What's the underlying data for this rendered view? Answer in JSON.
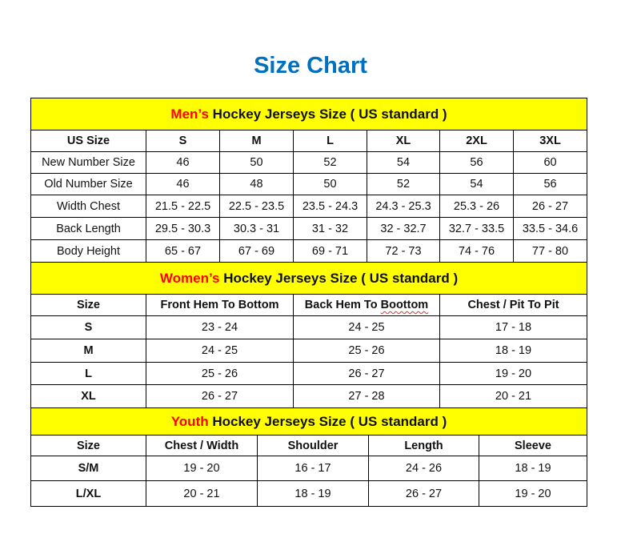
{
  "title": "Size Chart",
  "colors": {
    "title": "#0070c0",
    "banner": "#ffff00",
    "highlight": "#ff0000"
  },
  "men": {
    "banner_highlight": "Men’s",
    "banner_rest": " Hockey Jerseys Size ( US standard )",
    "headers": [
      "US Size",
      "S",
      "M",
      "L",
      "XL",
      "2XL",
      "3XL"
    ],
    "rows": [
      [
        "New Number Size",
        "46",
        "50",
        "52",
        "54",
        "56",
        "60"
      ],
      [
        "Old Number Size",
        "46",
        "48",
        "50",
        "52",
        "54",
        "56"
      ],
      [
        "Width Chest",
        "21.5 - 22.5",
        "22.5 - 23.5",
        "23.5 - 24.3",
        "24.3 - 25.3",
        "25.3 - 26",
        "26 - 27"
      ],
      [
        "Back Length",
        "29.5 - 30.3",
        "30.3 - 31",
        "31 - 32",
        "32 - 32.7",
        "32.7 - 33.5",
        "33.5 - 34.6"
      ],
      [
        "Body Height",
        "65 - 67",
        "67 - 69",
        "69 - 71",
        "72 - 73",
        "74 - 76",
        "77 - 80"
      ]
    ]
  },
  "women": {
    "banner_highlight": "Women’s",
    "banner_rest": " Hockey Jerseys Size ( US standard )",
    "headers": [
      "Size",
      "Front Hem To Bottom",
      "Back Hem To Boottom",
      "Chest / Pit To Pit"
    ],
    "rows": [
      [
        "S",
        "23 - 24",
        "24 - 25",
        "17 - 18"
      ],
      [
        "M",
        "24 - 25",
        "25 - 26",
        "18 - 19"
      ],
      [
        "L",
        "25 - 26",
        "26 - 27",
        "19 - 20"
      ],
      [
        "XL",
        "26 - 27",
        "27 - 28",
        "20 - 21"
      ]
    ]
  },
  "youth": {
    "banner_highlight": "Youth",
    "banner_rest": " Hockey Jerseys Size ( US standard )",
    "headers": [
      "Size",
      "Chest / Width",
      "Shoulder",
      "Length",
      "Sleeve"
    ],
    "rows": [
      [
        "S/M",
        "19 - 20",
        "16 - 17",
        "24 - 26",
        "18 - 19"
      ],
      [
        "L/XL",
        "20 - 21",
        "18 - 19",
        "26 - 27",
        "19 - 20"
      ]
    ]
  }
}
